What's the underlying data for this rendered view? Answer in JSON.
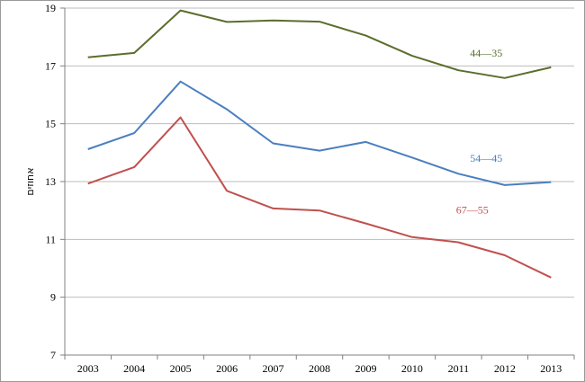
{
  "chart_data": {
    "type": "line",
    "title": "",
    "xlabel": "",
    "ylabel": "אחוזים",
    "x": [
      "2003",
      "2004",
      "2005",
      "2006",
      "2007",
      "2008",
      "2009",
      "2010",
      "2011",
      "2012",
      "2013"
    ],
    "ylim": [
      7,
      19
    ],
    "yticks": [
      7,
      9,
      11,
      13,
      15,
      17,
      19
    ],
    "grid": true,
    "legend": "none",
    "series": [
      {
        "name": "44—35",
        "color": "#5a6e2c",
        "values": [
          17.3,
          17.45,
          18.92,
          18.52,
          18.57,
          18.53,
          18.05,
          17.35,
          16.85,
          16.58,
          16.95
        ]
      },
      {
        "name": "54—45",
        "color": "#4a7fbf",
        "values": [
          14.12,
          14.68,
          16.46,
          15.5,
          14.32,
          14.07,
          14.37,
          13.83,
          13.27,
          12.88,
          12.98
        ]
      },
      {
        "name": "67—55",
        "color": "#c0504d",
        "values": [
          12.93,
          13.5,
          15.22,
          12.68,
          12.07,
          12.0,
          11.55,
          11.08,
          10.9,
          10.45,
          9.68
        ]
      }
    ]
  }
}
